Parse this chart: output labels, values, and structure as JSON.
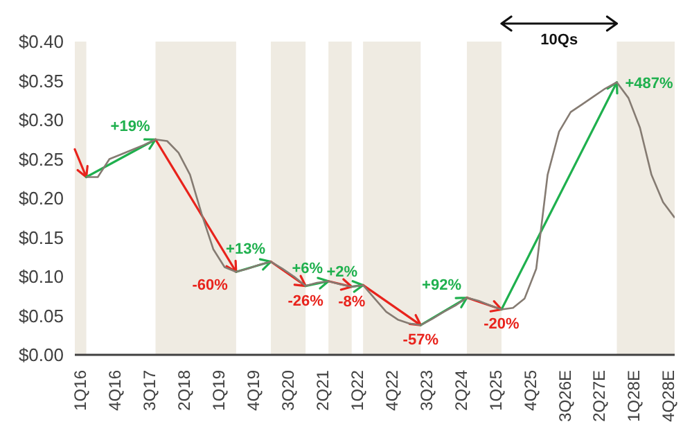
{
  "chart_data": {
    "type": "line",
    "xlim": [
      "2016-01",
      "2029-01"
    ],
    "xticks": [
      {
        "value": "2016-02-15",
        "label": "1Q16"
      },
      {
        "value": "2016-11-15",
        "label": "4Q16"
      },
      {
        "value": "2017-08-16",
        "label": "3Q17"
      },
      {
        "value": "2018-05-16",
        "label": "2Q18"
      },
      {
        "value": "2019-02-15",
        "label": "1Q19"
      },
      {
        "value": "2019-11-15",
        "label": "4Q19"
      },
      {
        "value": "2020-08-16",
        "label": "3Q20"
      },
      {
        "value": "2021-05-16",
        "label": "2Q21"
      },
      {
        "value": "2022-02-15",
        "label": "1Q22"
      },
      {
        "value": "2022-11-15",
        "label": "4Q22"
      },
      {
        "value": "2023-08-16",
        "label": "3Q23"
      },
      {
        "value": "2024-05-16",
        "label": "2Q24"
      },
      {
        "value": "2025-02-15",
        "label": "1Q25"
      },
      {
        "value": "2025-11-15",
        "label": "4Q25"
      },
      {
        "value": "2026-08-16",
        "label": "3Q26E"
      },
      {
        "value": "2027-05-16",
        "label": "2Q27E"
      },
      {
        "value": "2028-02-15",
        "label": "1Q28E"
      },
      {
        "value": "2028-11-15",
        "label": "4Q28E"
      }
    ],
    "ylim": [
      0,
      0.4
    ],
    "yticks": [
      {
        "value": 0,
        "label": "$0.00"
      },
      {
        "value": 0.05,
        "label": "$0.05"
      },
      {
        "value": 0.1,
        "label": "$0.10"
      },
      {
        "value": 0.15,
        "label": "$0.15"
      },
      {
        "value": 0.2,
        "label": "$0.20"
      },
      {
        "value": 0.25,
        "label": "$0.25"
      },
      {
        "value": 0.3,
        "label": "$0.30"
      },
      {
        "value": 0.35,
        "label": "$0.35"
      },
      {
        "value": 0.4,
        "label": "$0.40"
      }
    ],
    "bands": [
      {
        "axis": "x",
        "from": "2016-01",
        "to": "2016-04",
        "color": "#efebe2"
      },
      {
        "axis": "x",
        "from": "2017-10",
        "to": "2019-07",
        "color": "#efebe2"
      },
      {
        "axis": "x",
        "from": "2020-04",
        "to": "2021-01",
        "color": "#efebe2"
      },
      {
        "axis": "x",
        "from": "2021-07",
        "to": "2022-01",
        "color": "#efebe2"
      },
      {
        "axis": "x",
        "from": "2022-04",
        "to": "2023-07",
        "color": "#efebe2"
      },
      {
        "axis": "x",
        "from": "2024-07",
        "to": "2025-04",
        "color": "#efebe2"
      },
      {
        "axis": "x",
        "from": "2027-10",
        "to": "2029-01",
        "color": "#efebe2"
      }
    ],
    "annotations": [
      "10Qs",
      {
        "text": "+19%",
        "x": "2017-10",
        "y": 0.275
      },
      {
        "text": "-60%",
        "x": "2019-07",
        "y": 0.106
      },
      {
        "text": "+13%",
        "x": "2020-04",
        "y": 0.119
      },
      {
        "text": "-26%",
        "x": "2021-01",
        "y": 0.088
      },
      {
        "text": "+6%",
        "x": "2021-07",
        "y": 0.094
      },
      {
        "text": "-8%",
        "x": "2022-01",
        "y": 0.087
      },
      {
        "text": "+2%",
        "x": "2022-04",
        "y": 0.089
      },
      {
        "text": "-57%",
        "x": "2023-07",
        "y": 0.038
      },
      {
        "text": "+92%",
        "x": "2024-07",
        "y": 0.073
      },
      {
        "text": "-20%",
        "x": "2025-04",
        "y": 0.058
      },
      {
        "text": "+487%",
        "x": "2027-10",
        "y": 0.348
      }
    ],
    "series": [
      {
        "color": "#857b72",
        "x": [
          "2016-04",
          "2016-07",
          "2016-10",
          "2017-01",
          "2017-04",
          "2017-07",
          "2017-10",
          "2018-01",
          "2018-04",
          "2018-07",
          "2018-10",
          "2019-01",
          "2019-04",
          "2019-07",
          "2019-10",
          "2020-01",
          "2020-04",
          "2020-07",
          "2020-10",
          "2021-01",
          "2021-04",
          "2021-07",
          "2021-10",
          "2022-01",
          "2022-04",
          "2022-07",
          "2022-10",
          "2023-01",
          "2023-04",
          "2023-07",
          "2023-10",
          "2024-01",
          "2024-04",
          "2024-07",
          "2024-10",
          "2025-01",
          "2025-04",
          "2025-07",
          "2025-10",
          "2026-01",
          "2026-04",
          "2026-07",
          "2026-10",
          "2027-01",
          "2027-04",
          "2027-07",
          "2027-10",
          "2028-01",
          "2028-04",
          "2028-07",
          "2028-10",
          "2029-01"
        ],
        "values": [
          0.227,
          0.227,
          0.25,
          0.256,
          0.262,
          0.268,
          0.275,
          0.273,
          0.258,
          0.23,
          0.18,
          0.135,
          0.112,
          0.106,
          0.11,
          0.115,
          0.119,
          0.11,
          0.1,
          0.088,
          0.092,
          0.094,
          0.09,
          0.087,
          0.089,
          0.072,
          0.055,
          0.045,
          0.04,
          0.038,
          0.046,
          0.055,
          0.063,
          0.073,
          0.069,
          0.063,
          0.058,
          0.06,
          0.072,
          0.11,
          0.23,
          0.285,
          0.31,
          0.32,
          0.33,
          0.34,
          0.348,
          0.328,
          0.29,
          0.23,
          0.195,
          0.175
        ]
      }
    ]
  }
}
